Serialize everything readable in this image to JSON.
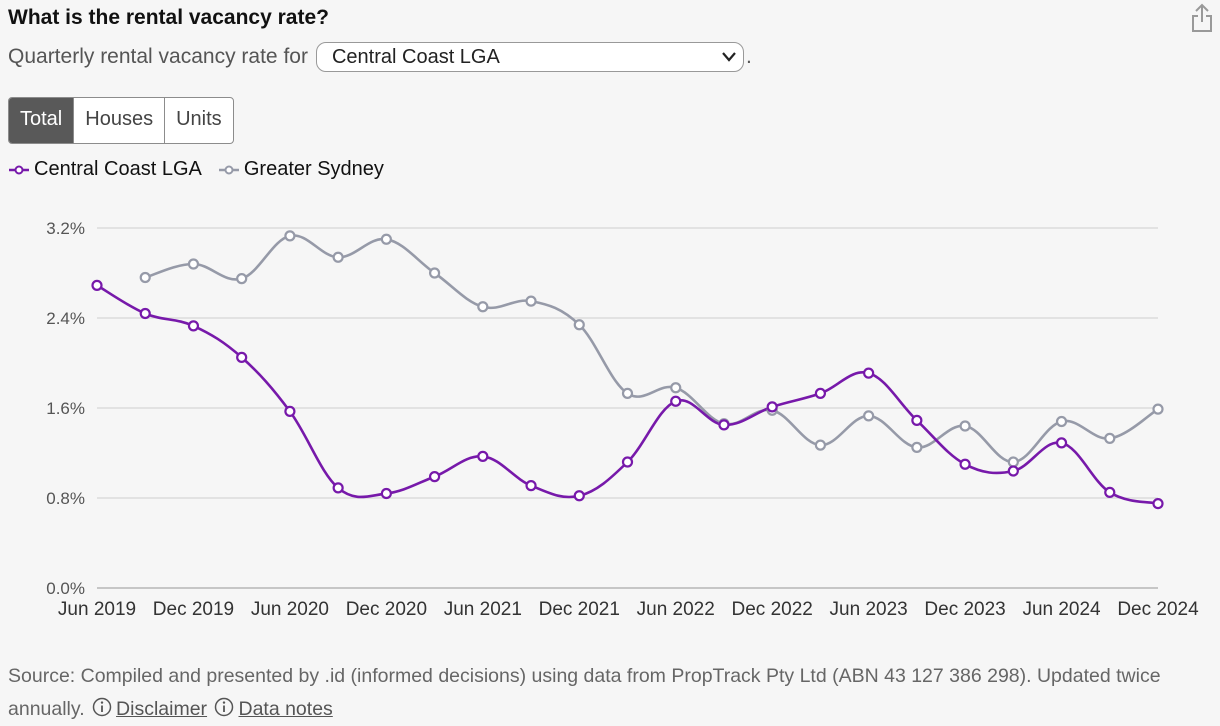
{
  "header": {
    "title": "What is the rental vacancy rate?",
    "subtitle_prefix": "Quarterly rental vacancy rate for",
    "subtitle_suffix": ".",
    "area_select": "Central Coast LGA",
    "share_icon": "share-icon"
  },
  "toggle": {
    "options": [
      "Total",
      "Houses",
      "Units"
    ],
    "selected": "Total"
  },
  "colors": {
    "central_coast": "#7719aa",
    "greater_sydney": "#969aa8",
    "grid": "#d6d6d6",
    "toggle_active": "#595959"
  },
  "chart_data": {
    "type": "line",
    "ylim": [
      0,
      3.2
    ],
    "yticks": [
      "3.2%",
      "2.4%",
      "1.6%",
      "0.8%",
      "0.0%"
    ],
    "ytick_values": [
      3.2,
      2.4,
      1.6,
      0.8,
      0.0
    ],
    "xtick_labels": [
      "Jun 2019",
      "Dec 2019",
      "Jun 2020",
      "Dec 2020",
      "Jun 2021",
      "Dec 2021",
      "Jun 2022",
      "Dec 2022",
      "Jun 2023",
      "Dec 2023",
      "Jun 2024",
      "Dec 2024"
    ],
    "x": [
      "Jun 2019",
      "Sep 2019",
      "Dec 2019",
      "Mar 2020",
      "Jun 2020",
      "Sep 2020",
      "Dec 2020",
      "Mar 2021",
      "Jun 2021",
      "Sep 2021",
      "Dec 2021",
      "Mar 2022",
      "Jun 2022",
      "Sep 2022",
      "Dec 2022",
      "Mar 2023",
      "Jun 2023",
      "Sep 2023",
      "Dec 2023",
      "Mar 2024",
      "Jun 2024",
      "Sep 2024",
      "Dec 2024"
    ],
    "legend_position": "top-left",
    "grid": true,
    "series": [
      {
        "name": "Central Coast LGA",
        "color": "#7719aa",
        "values": [
          2.69,
          2.44,
          2.33,
          2.05,
          1.57,
          0.89,
          0.84,
          0.99,
          1.17,
          0.91,
          0.82,
          1.12,
          1.66,
          1.45,
          1.61,
          1.73,
          1.91,
          1.49,
          1.1,
          1.04,
          1.29,
          0.85,
          0.75
        ]
      },
      {
        "name": "Greater Sydney",
        "color": "#969aa8",
        "values": [
          null,
          2.76,
          2.88,
          2.75,
          3.13,
          2.94,
          3.1,
          2.8,
          2.5,
          2.55,
          2.34,
          1.73,
          1.78,
          1.46,
          1.58,
          1.27,
          1.53,
          1.25,
          1.44,
          1.12,
          1.48,
          1.33,
          1.59
        ]
      }
    ]
  },
  "source": {
    "text": "Source: Compiled and presented by .id (informed decisions) using data from PropTrack Pty Ltd (ABN 43 127 386 298). Updated twice annually.",
    "disclaimer": "Disclaimer",
    "data_notes": "Data notes",
    "info_icon": "info-icon"
  }
}
